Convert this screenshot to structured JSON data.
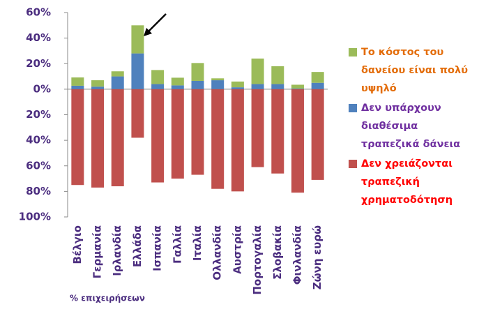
{
  "chart_data": {
    "type": "bar",
    "stacked": true,
    "categories": [
      "Βέλγιο",
      "Γερμανία",
      "Ιρλανδία",
      "Ελλάδα",
      "Ισπανία",
      "Γαλλία",
      "Ιταλία",
      "Ολλανδία",
      "Αυστρία",
      "Πορτογαλία",
      "Σλοβακία",
      "Φινλανδία",
      "Ζώνη ευρώ"
    ],
    "series": [
      {
        "name": "Δεν υπάρχουν διαθέσιμα τραπεζικά δάνεια",
        "color": "#4f81bd",
        "label_color": "#7030a0",
        "values": [
          2.7,
          2,
          10,
          28,
          4,
          3,
          6.5,
          7,
          1.5,
          4,
          4,
          0.5,
          5
        ]
      },
      {
        "name": "Το κόστος του δανείου είναι πολύ υψηλό",
        "color": "#9bbb59",
        "label_color": "#e36c09",
        "values": [
          6.5,
          5,
          4,
          22,
          11,
          6,
          14,
          1.5,
          4.5,
          20,
          14,
          3,
          8.5
        ]
      },
      {
        "name": "Δεν χρειάζονται τραπεζική χρηματοδότηση",
        "color": "#c0504d",
        "label_color": "#ff0000",
        "values": [
          -75,
          -77,
          -76,
          -38,
          -73,
          -70,
          -67,
          -78,
          -80,
          -61,
          -66,
          -81,
          -71
        ]
      }
    ],
    "legend_order": [
      1,
      0,
      2
    ],
    "ylim": [
      -100,
      60
    ],
    "yticks": [
      {
        "value": -100,
        "label": "100%"
      },
      {
        "value": -80,
        "label": "80%"
      },
      {
        "value": -60,
        "label": "60%"
      },
      {
        "value": -40,
        "label": "40%"
      },
      {
        "value": -20,
        "label": "20%"
      },
      {
        "value": 0,
        "label": "0%"
      },
      {
        "value": 20,
        "label": "20%"
      },
      {
        "value": 40,
        "label": "40%"
      },
      {
        "value": 60,
        "label": "60%"
      }
    ],
    "footnote": "% επιχειρήσεων",
    "grid": false
  }
}
